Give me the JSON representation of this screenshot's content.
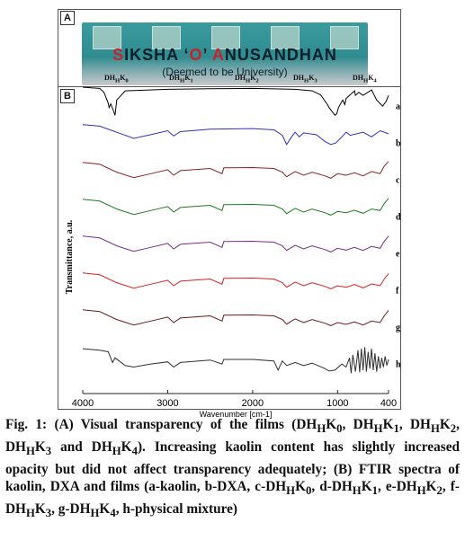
{
  "panel_a": {
    "label": "A",
    "banner_line1_red1": "S",
    "banner_line1_part1": "IKSHA ‘",
    "banner_line1_red2": "O",
    "banner_line1_part2": "’ ",
    "banner_line1_red3": "A",
    "banner_line1_part3": "NUSANDHAN",
    "banner_line2": "(Deemed to be University)",
    "film_labels": [
      "DHHK0",
      "DHHK1",
      "DHHK2",
      "DHHK3",
      "DHHK4"
    ]
  },
  "panel_b": {
    "label": "B"
  },
  "chart_data": {
    "type": "line",
    "xlabel": "Wavenumber [cm-1]",
    "ylabel": "Transmittance, a.u.",
    "xlim": [
      4000,
      400
    ],
    "xticks": [
      4000,
      3000,
      2000,
      1000,
      400
    ],
    "grid": false,
    "series": [
      {
        "name": "a",
        "color": "#000000",
        "points": [
          [
            4000,
            0.97
          ],
          [
            3900,
            0.95
          ],
          [
            3800,
            0.93
          ],
          [
            3750,
            0.8
          ],
          [
            3700,
            0.45
          ],
          [
            3690,
            0.3
          ],
          [
            3670,
            0.42
          ],
          [
            3650,
            0.28
          ],
          [
            3620,
            0.05
          ],
          [
            3600,
            0.55
          ],
          [
            3500,
            0.85
          ],
          [
            3000,
            0.9
          ],
          [
            2500,
            0.92
          ],
          [
            2000,
            0.93
          ],
          [
            1500,
            0.9
          ],
          [
            1300,
            0.85
          ],
          [
            1200,
            0.72
          ],
          [
            1120,
            0.4
          ],
          [
            1100,
            0.3
          ],
          [
            1030,
            0.05
          ],
          [
            1010,
            0.1
          ],
          [
            990,
            0.3
          ],
          [
            940,
            0.55
          ],
          [
            915,
            0.4
          ],
          [
            900,
            0.6
          ],
          [
            800,
            0.85
          ],
          [
            790,
            0.7
          ],
          [
            750,
            0.8
          ],
          [
            700,
            0.7
          ],
          [
            600,
            0.88
          ],
          [
            540,
            0.55
          ],
          [
            470,
            0.35
          ],
          [
            430,
            0.5
          ],
          [
            400,
            0.7
          ]
        ]
      },
      {
        "name": "b",
        "color": "#3030c0",
        "points": [
          [
            4000,
            0.95
          ],
          [
            3800,
            0.9
          ],
          [
            3600,
            0.7
          ],
          [
            3400,
            0.5
          ],
          [
            3200,
            0.62
          ],
          [
            3000,
            0.75
          ],
          [
            2930,
            0.58
          ],
          [
            2850,
            0.72
          ],
          [
            2500,
            0.8
          ],
          [
            2000,
            0.82
          ],
          [
            1750,
            0.78
          ],
          [
            1650,
            0.6
          ],
          [
            1600,
            0.3
          ],
          [
            1540,
            0.55
          ],
          [
            1500,
            0.7
          ],
          [
            1450,
            0.55
          ],
          [
            1400,
            0.68
          ],
          [
            1250,
            0.62
          ],
          [
            1150,
            0.4
          ],
          [
            1080,
            0.3
          ],
          [
            1020,
            0.35
          ],
          [
            950,
            0.55
          ],
          [
            900,
            0.7
          ],
          [
            850,
            0.6
          ],
          [
            700,
            0.7
          ],
          [
            600,
            0.55
          ],
          [
            500,
            0.75
          ],
          [
            400,
            0.65
          ]
        ]
      },
      {
        "name": "c",
        "color": "#8b2323",
        "points": [
          [
            4000,
            0.92
          ],
          [
            3800,
            0.86
          ],
          [
            3600,
            0.6
          ],
          [
            3400,
            0.42
          ],
          [
            3200,
            0.55
          ],
          [
            3000,
            0.68
          ],
          [
            2930,
            0.5
          ],
          [
            2850,
            0.65
          ],
          [
            2500,
            0.72
          ],
          [
            2360,
            0.55
          ],
          [
            2340,
            0.74
          ],
          [
            2000,
            0.75
          ],
          [
            1750,
            0.72
          ],
          [
            1650,
            0.6
          ],
          [
            1600,
            0.45
          ],
          [
            1500,
            0.62
          ],
          [
            1400,
            0.5
          ],
          [
            1300,
            0.6
          ],
          [
            1150,
            0.48
          ],
          [
            1080,
            0.4
          ],
          [
            1000,
            0.55
          ],
          [
            900,
            0.5
          ],
          [
            800,
            0.58
          ],
          [
            700,
            0.48
          ],
          [
            600,
            0.62
          ],
          [
            500,
            0.55
          ],
          [
            450,
            0.8
          ],
          [
            400,
            0.95
          ]
        ]
      },
      {
        "name": "d",
        "color": "#1e7b1e",
        "points": [
          [
            4000,
            0.92
          ],
          [
            3800,
            0.86
          ],
          [
            3600,
            0.6
          ],
          [
            3400,
            0.42
          ],
          [
            3200,
            0.55
          ],
          [
            3000,
            0.68
          ],
          [
            2930,
            0.5
          ],
          [
            2850,
            0.65
          ],
          [
            2500,
            0.72
          ],
          [
            2360,
            0.55
          ],
          [
            2340,
            0.74
          ],
          [
            2000,
            0.75
          ],
          [
            1750,
            0.72
          ],
          [
            1650,
            0.6
          ],
          [
            1600,
            0.45
          ],
          [
            1500,
            0.62
          ],
          [
            1400,
            0.5
          ],
          [
            1300,
            0.6
          ],
          [
            1150,
            0.48
          ],
          [
            1080,
            0.4
          ],
          [
            1000,
            0.52
          ],
          [
            900,
            0.48
          ],
          [
            800,
            0.56
          ],
          [
            700,
            0.46
          ],
          [
            600,
            0.6
          ],
          [
            500,
            0.55
          ],
          [
            450,
            0.78
          ],
          [
            400,
            0.95
          ]
        ]
      },
      {
        "name": "e",
        "color": "#7a2a8a",
        "points": [
          [
            4000,
            0.92
          ],
          [
            3800,
            0.86
          ],
          [
            3600,
            0.6
          ],
          [
            3400,
            0.42
          ],
          [
            3200,
            0.55
          ],
          [
            3000,
            0.68
          ],
          [
            2930,
            0.5
          ],
          [
            2850,
            0.65
          ],
          [
            2500,
            0.72
          ],
          [
            2360,
            0.55
          ],
          [
            2340,
            0.74
          ],
          [
            2000,
            0.75
          ],
          [
            1750,
            0.72
          ],
          [
            1650,
            0.6
          ],
          [
            1600,
            0.45
          ],
          [
            1500,
            0.62
          ],
          [
            1400,
            0.5
          ],
          [
            1300,
            0.6
          ],
          [
            1150,
            0.48
          ],
          [
            1080,
            0.4
          ],
          [
            1000,
            0.52
          ],
          [
            900,
            0.46
          ],
          [
            800,
            0.55
          ],
          [
            700,
            0.45
          ],
          [
            600,
            0.58
          ],
          [
            500,
            0.52
          ],
          [
            450,
            0.75
          ],
          [
            400,
            0.92
          ]
        ]
      },
      {
        "name": "f",
        "color": "#e02020",
        "points": [
          [
            4000,
            0.92
          ],
          [
            3800,
            0.86
          ],
          [
            3600,
            0.6
          ],
          [
            3400,
            0.42
          ],
          [
            3200,
            0.55
          ],
          [
            3000,
            0.68
          ],
          [
            2930,
            0.5
          ],
          [
            2850,
            0.65
          ],
          [
            2500,
            0.72
          ],
          [
            2360,
            0.55
          ],
          [
            2340,
            0.74
          ],
          [
            2000,
            0.75
          ],
          [
            1750,
            0.72
          ],
          [
            1650,
            0.6
          ],
          [
            1600,
            0.45
          ],
          [
            1500,
            0.62
          ],
          [
            1400,
            0.5
          ],
          [
            1300,
            0.6
          ],
          [
            1150,
            0.48
          ],
          [
            1080,
            0.4
          ],
          [
            1000,
            0.5
          ],
          [
            900,
            0.45
          ],
          [
            800,
            0.54
          ],
          [
            700,
            0.43
          ],
          [
            600,
            0.56
          ],
          [
            500,
            0.5
          ],
          [
            450,
            0.72
          ],
          [
            400,
            0.9
          ]
        ]
      },
      {
        "name": "g",
        "color": "#6b1a1a",
        "points": [
          [
            4000,
            0.92
          ],
          [
            3800,
            0.86
          ],
          [
            3600,
            0.6
          ],
          [
            3400,
            0.42
          ],
          [
            3200,
            0.55
          ],
          [
            3000,
            0.68
          ],
          [
            2930,
            0.5
          ],
          [
            2850,
            0.65
          ],
          [
            2500,
            0.72
          ],
          [
            2360,
            0.55
          ],
          [
            2340,
            0.74
          ],
          [
            2000,
            0.75
          ],
          [
            1750,
            0.72
          ],
          [
            1650,
            0.6
          ],
          [
            1600,
            0.45
          ],
          [
            1500,
            0.62
          ],
          [
            1400,
            0.5
          ],
          [
            1300,
            0.6
          ],
          [
            1150,
            0.48
          ],
          [
            1080,
            0.4
          ],
          [
            1000,
            0.5
          ],
          [
            900,
            0.44
          ],
          [
            800,
            0.52
          ],
          [
            700,
            0.42
          ],
          [
            600,
            0.55
          ],
          [
            500,
            0.5
          ],
          [
            450,
            0.72
          ],
          [
            400,
            0.9
          ]
        ]
      },
      {
        "name": "h",
        "color": "#303030",
        "points": [
          [
            4000,
            0.85
          ],
          [
            3800,
            0.8
          ],
          [
            3700,
            0.75
          ],
          [
            3650,
            0.4
          ],
          [
            3620,
            0.55
          ],
          [
            3500,
            0.3
          ],
          [
            3400,
            0.25
          ],
          [
            3200,
            0.35
          ],
          [
            3000,
            0.42
          ],
          [
            2930,
            0.25
          ],
          [
            2850,
            0.4
          ],
          [
            2500,
            0.48
          ],
          [
            2360,
            0.35
          ],
          [
            2340,
            0.5
          ],
          [
            2000,
            0.5
          ],
          [
            1750,
            0.45
          ],
          [
            1700,
            0.15
          ],
          [
            1650,
            0.45
          ],
          [
            1600,
            0.3
          ],
          [
            1500,
            0.4
          ],
          [
            1400,
            0.3
          ],
          [
            1300,
            0.38
          ],
          [
            1150,
            0.2
          ],
          [
            1100,
            0.12
          ],
          [
            1030,
            0.15
          ],
          [
            950,
            0.35
          ],
          [
            900,
            0.25
          ],
          [
            860,
            0.55
          ],
          [
            840,
            0.05
          ],
          [
            820,
            0.65
          ],
          [
            790,
            0.1
          ],
          [
            760,
            0.8
          ],
          [
            740,
            0.08
          ],
          [
            720,
            0.85
          ],
          [
            700,
            0.15
          ],
          [
            680,
            0.9
          ],
          [
            660,
            0.1
          ],
          [
            640,
            0.75
          ],
          [
            620,
            0.2
          ],
          [
            600,
            0.85
          ],
          [
            580,
            0.15
          ],
          [
            560,
            0.7
          ],
          [
            540,
            0.1
          ],
          [
            520,
            0.6
          ],
          [
            500,
            0.2
          ],
          [
            480,
            0.55
          ],
          [
            460,
            0.25
          ],
          [
            440,
            0.6
          ],
          [
            420,
            0.3
          ],
          [
            400,
            0.5
          ]
        ]
      }
    ]
  },
  "caption": {
    "fig": "Fig. 1:",
    "text": "(A) Visual transparency of the films (DHHK0, DHHK1, DHHK2, DHHK3 and DHHK4). Increasing kaolin content has slightly increased opacity but did not affect transparency adequately; (B) FTIR spectra of kaolin, DXA and films (a-kaolin, b-DXA, c-DHHK0, d-DHHK1, e-DHHK2, f-DHHK3, g-DHHK4, h-physical mixture)"
  }
}
